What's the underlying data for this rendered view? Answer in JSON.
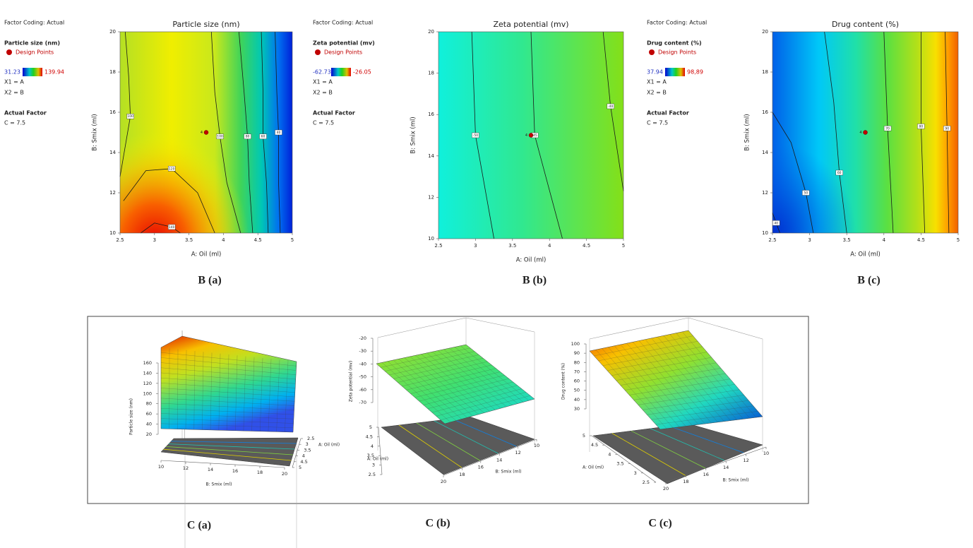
{
  "chart_data": [
    {
      "type": "contour",
      "title": "Particle size (nm)",
      "caption": "B (a)",
      "xlabel": "A: Oil (ml)",
      "ylabel": "B: Smix (ml)",
      "xlim": [
        2.5,
        5
      ],
      "xticks": [
        2.5,
        3,
        3.5,
        4,
        4.5,
        5
      ],
      "ylim": [
        10,
        20
      ],
      "yticks": [
        10,
        12,
        14,
        16,
        18,
        20
      ],
      "factor_coding": "Factor Coding: Actual",
      "response_label": "Particle size (nm)",
      "points_label": "Design Points",
      "color_range": [
        31.23,
        139.94
      ],
      "x1": "X1 = A",
      "x2": "X2 = B",
      "actual_factor_title": "Actual Factor",
      "actual_factor": "C = 7.5",
      "design_point": {
        "x": 3.75,
        "y": 15,
        "label": "4"
      },
      "contours": [
        100,
        140,
        120,
        100,
        80,
        60,
        40
      ]
    },
    {
      "type": "contour",
      "title": "Zeta potential (mv)",
      "caption": "B (b)",
      "xlabel": "A: Oil (ml)",
      "ylabel": "B: Smix (ml)",
      "xlim": [
        2.5,
        5
      ],
      "xticks": [
        2.5,
        3,
        3.5,
        4,
        4.5,
        5
      ],
      "ylim": [
        10,
        20
      ],
      "yticks": [
        10,
        12,
        14,
        16,
        18,
        20
      ],
      "factor_coding": "Factor Coding: Actual",
      "response_label": "Zeta potential (mv)",
      "points_label": "Design Points",
      "color_range": [
        -62.73,
        -26.05
      ],
      "x1": "X1 = A",
      "x2": "X2 = B",
      "actual_factor_title": "Actual Factor",
      "actual_factor": "C = 7.5",
      "design_point": {
        "x": 3.75,
        "y": 15,
        "label": "4"
      },
      "contours": [
        -50,
        -45,
        -40
      ]
    },
    {
      "type": "contour",
      "title": "Drug content (%)",
      "caption": "B (c)",
      "xlabel": "A: Oil (ml)",
      "ylabel": "B: Smix (ml)",
      "xlim": [
        2.5,
        5
      ],
      "xticks": [
        2.5,
        3,
        3.5,
        4,
        4.5,
        5
      ],
      "ylim": [
        10,
        20
      ],
      "yticks": [
        10,
        12,
        14,
        16,
        18,
        20
      ],
      "factor_coding": "Factor Coding: Actual",
      "response_label": "Drug content (%)",
      "points_label": "Design Points",
      "color_range": [
        37.94,
        {
          "value": 98.89,
          "label": "98,89"
        }
      ],
      "x1": "X1 = A",
      "x2": "X2 = B",
      "actual_factor_title": "Actual Factor",
      "actual_factor": "C = 7.5",
      "design_point": {
        "x": 3.75,
        "y": 15,
        "label": "4"
      },
      "contours": [
        40,
        50,
        60,
        70,
        80,
        90
      ]
    },
    {
      "type": "surface",
      "caption": "C (a)",
      "zlabel": "Particle size (nm)",
      "xlabel": "B: Smix (ml)",
      "ylabel": "A: Oil (ml)",
      "xlim": [
        10,
        20
      ],
      "xticks": [
        10,
        12,
        14,
        16,
        18,
        20
      ],
      "ylim": [
        2.5,
        5
      ],
      "yticks": [
        2.5,
        3,
        3.5,
        4,
        4.5,
        5
      ],
      "zlim": [
        20,
        160
      ],
      "zticks": [
        20,
        40,
        60,
        80,
        100,
        120,
        140,
        160
      ]
    },
    {
      "type": "surface",
      "caption": "C (b)",
      "zlabel": "Zeta potential (mv)",
      "xlabel": "B: Smix (ml)",
      "ylabel": "A: Oil (ml)",
      "xlim": [
        10,
        20
      ],
      "xticks": [
        10,
        12,
        14,
        16,
        18,
        20
      ],
      "ylim": [
        2.5,
        5
      ],
      "yticks": [
        2.5,
        3,
        3.5,
        4,
        4.5,
        5
      ],
      "zlim": [
        -70,
        -20
      ],
      "zticks": [
        -70,
        -60,
        -50,
        -40,
        -30,
        -20
      ]
    },
    {
      "type": "surface",
      "caption": "C (c)",
      "zlabel": "Drug content (%)",
      "xlabel": "B: Smix (ml)",
      "ylabel": "A: Oil (ml)",
      "xlim": [
        10,
        20
      ],
      "xticks": [
        10,
        12,
        14,
        16,
        18,
        20
      ],
      "ylim": [
        2.5,
        5
      ],
      "yticks": [
        2.5,
        3,
        3.5,
        4,
        4.5,
        5
      ],
      "zlim": [
        30,
        100
      ],
      "zticks": [
        30,
        40,
        50,
        60,
        70,
        80,
        90,
        100
      ]
    }
  ]
}
